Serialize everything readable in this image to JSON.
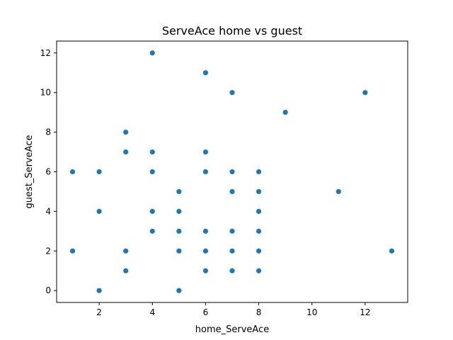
{
  "chart_data": {
    "type": "scatter",
    "title": "ServeAce home vs guest",
    "xlabel": "home_ServeAce",
    "ylabel": "guest_ServeAce",
    "xlim": [
      0.4,
      13.6
    ],
    "ylim": [
      -0.6,
      12.6
    ],
    "xticks": [
      2,
      4,
      6,
      8,
      10,
      12
    ],
    "yticks": [
      0,
      2,
      4,
      6,
      8,
      10,
      12
    ],
    "grid": false,
    "color": "#1f77b4",
    "points": [
      {
        "x": 1,
        "y": 6
      },
      {
        "x": 1,
        "y": 2
      },
      {
        "x": 2,
        "y": 6
      },
      {
        "x": 2,
        "y": 4
      },
      {
        "x": 2,
        "y": 0
      },
      {
        "x": 3,
        "y": 8
      },
      {
        "x": 3,
        "y": 7
      },
      {
        "x": 3,
        "y": 2
      },
      {
        "x": 3,
        "y": 1
      },
      {
        "x": 4,
        "y": 12
      },
      {
        "x": 4,
        "y": 7
      },
      {
        "x": 4,
        "y": 6
      },
      {
        "x": 4,
        "y": 4
      },
      {
        "x": 4,
        "y": 3
      },
      {
        "x": 5,
        "y": 5
      },
      {
        "x": 5,
        "y": 4
      },
      {
        "x": 5,
        "y": 3
      },
      {
        "x": 5,
        "y": 2
      },
      {
        "x": 5,
        "y": 0
      },
      {
        "x": 6,
        "y": 11
      },
      {
        "x": 6,
        "y": 7
      },
      {
        "x": 6,
        "y": 6
      },
      {
        "x": 6,
        "y": 3
      },
      {
        "x": 6,
        "y": 2
      },
      {
        "x": 6,
        "y": 1
      },
      {
        "x": 7,
        "y": 10
      },
      {
        "x": 7,
        "y": 6
      },
      {
        "x": 7,
        "y": 5
      },
      {
        "x": 7,
        "y": 3
      },
      {
        "x": 7,
        "y": 2
      },
      {
        "x": 7,
        "y": 1
      },
      {
        "x": 8,
        "y": 6
      },
      {
        "x": 8,
        "y": 5
      },
      {
        "x": 8,
        "y": 4
      },
      {
        "x": 8,
        "y": 3
      },
      {
        "x": 8,
        "y": 2
      },
      {
        "x": 8,
        "y": 1
      },
      {
        "x": 9,
        "y": 9
      },
      {
        "x": 11,
        "y": 5
      },
      {
        "x": 12,
        "y": 10
      },
      {
        "x": 13,
        "y": 2
      }
    ]
  }
}
